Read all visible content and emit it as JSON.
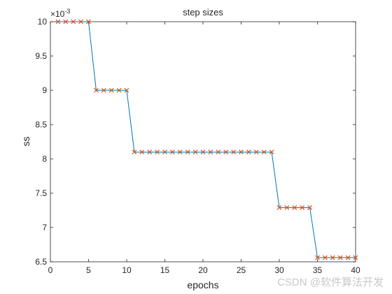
{
  "chart_data": {
    "type": "line",
    "title": "step sizes",
    "xlabel": "epochs",
    "ylabel": "ss",
    "y_exponent": {
      "base": "×10",
      "power": "-3"
    },
    "x": [
      1,
      2,
      3,
      4,
      5,
      6,
      7,
      8,
      9,
      10,
      11,
      12,
      13,
      14,
      15,
      16,
      17,
      18,
      19,
      20,
      21,
      22,
      23,
      24,
      25,
      26,
      27,
      28,
      29,
      30,
      31,
      32,
      33,
      34,
      35,
      36,
      37,
      38,
      39,
      40
    ],
    "series": [
      {
        "color": "#0072bd",
        "marker_color": "#d95319",
        "values": [
          10,
          10,
          10,
          10,
          10,
          9,
          9,
          9,
          9,
          9,
          8.1,
          8.1,
          8.1,
          8.1,
          8.1,
          8.1,
          8.1,
          8.1,
          8.1,
          8.1,
          8.1,
          8.1,
          8.1,
          8.1,
          8.1,
          8.1,
          8.1,
          8.1,
          8.1,
          7.29,
          7.29,
          7.29,
          7.29,
          7.29,
          6.561,
          6.561,
          6.561,
          6.561,
          6.561,
          6.561
        ]
      }
    ],
    "xlim": [
      0,
      40
    ],
    "xticks": [
      0,
      5,
      10,
      15,
      20,
      25,
      30,
      35,
      40
    ],
    "ylim": [
      6.5,
      10
    ],
    "yticks": [
      6.5,
      7,
      7.5,
      8,
      8.5,
      9,
      9.5,
      10
    ],
    "watermark": "CSDN @软件算法开发"
  }
}
